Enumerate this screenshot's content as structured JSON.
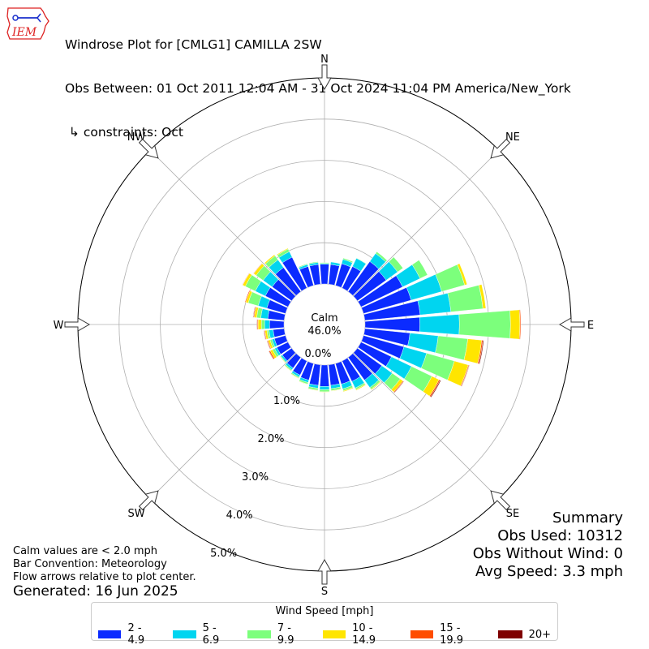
{
  "header": {
    "logo_text": "IEM",
    "title_line1": "Windrose Plot for [CMLG1] CAMILLA 2SW",
    "title_line2": "Obs Between: 01 Oct 2011 12:04 AM - 31 Oct 2024 11:04 PM America/New_York",
    "title_line3": " ↳ constraints: Oct"
  },
  "notes": {
    "calm_note": "Calm values are < 2.0 mph",
    "bar_convention": "Bar Convention: Meteorology",
    "flow_arrows": "Flow arrows relative to plot center.",
    "generated": "Generated: 16 Jun 2025"
  },
  "summary": {
    "title": "Summary",
    "obs_used": "Obs Used: 10312",
    "obs_without_wind": "Obs Without Wind: 0",
    "avg_speed": "Avg Speed: 3.3 mph"
  },
  "calm": {
    "label": "Calm",
    "value": "46.0%"
  },
  "legend": {
    "title": "Wind Speed [mph]"
  },
  "chart_data": {
    "type": "windrose",
    "units": "percent of observations",
    "calm_percent": 46.0,
    "direction_labels": [
      {
        "label": "N",
        "angle": 0
      },
      {
        "label": "NE",
        "angle": 45
      },
      {
        "label": "E",
        "angle": 90
      },
      {
        "label": "SE",
        "angle": 135
      },
      {
        "label": "S",
        "angle": 180
      },
      {
        "label": "SW",
        "angle": 225
      },
      {
        "label": "W",
        "angle": 270
      },
      {
        "label": "NW",
        "angle": 315
      }
    ],
    "radial_ticks": [
      "0.0%",
      "1.0%",
      "2.0%",
      "3.0%",
      "4.0%",
      "5.0%"
    ],
    "rmax_percent": 5.0,
    "bins": [
      {
        "label": "2 - 4.9",
        "color": "#0b2bff"
      },
      {
        "label": "5 - 6.9",
        "color": "#00d5f0"
      },
      {
        "label": "7 - 9.9",
        "color": "#7cff7c"
      },
      {
        "label": "10 - 14.9",
        "color": "#ffe500"
      },
      {
        "label": "15 - 19.9",
        "color": "#ff4d00"
      },
      {
        "label": "20+",
        "color": "#7f0000"
      }
    ],
    "sectors": [
      {
        "dir": 0,
        "values": [
          0.48,
          0.02,
          0.02,
          0.0,
          0.0,
          0.0
        ]
      },
      {
        "dir": 10,
        "values": [
          0.48,
          0.06,
          0.0,
          0.0,
          0.0,
          0.0
        ]
      },
      {
        "dir": 20,
        "values": [
          0.55,
          0.11,
          0.03,
          0.0,
          0.0,
          0.0
        ]
      },
      {
        "dir": 30,
        "values": [
          0.58,
          0.22,
          0.01,
          0.0,
          0.0,
          0.0
        ]
      },
      {
        "dir": 40,
        "values": [
          0.9,
          0.24,
          0.05,
          0.0,
          0.0,
          0.0
        ]
      },
      {
        "dir": 50,
        "values": [
          0.86,
          0.34,
          0.16,
          0.0,
          0.0,
          0.0
        ]
      },
      {
        "dir": 60,
        "values": [
          1.12,
          0.47,
          0.2,
          0.0,
          0.0,
          0.0
        ]
      },
      {
        "dir": 70,
        "values": [
          1.2,
          0.77,
          0.58,
          0.06,
          0.0,
          0.0
        ]
      },
      {
        "dir": 80,
        "values": [
          1.35,
          0.75,
          0.78,
          0.07,
          0.0,
          0.0
        ]
      },
      {
        "dir": 90,
        "values": [
          1.33,
          0.96,
          1.24,
          0.23,
          0.02,
          0.0
        ]
      },
      {
        "dir": 100,
        "values": [
          1.1,
          0.69,
          0.72,
          0.34,
          0.03,
          0.02
        ]
      },
      {
        "dir": 110,
        "values": [
          1.02,
          0.57,
          0.7,
          0.35,
          0.02,
          0.01
        ]
      },
      {
        "dir": 120,
        "values": [
          0.82,
          0.54,
          0.55,
          0.19,
          0.03,
          0.02
        ]
      },
      {
        "dir": 130,
        "values": [
          0.73,
          0.31,
          0.24,
          0.08,
          0.02,
          0.01
        ]
      },
      {
        "dir": 140,
        "values": [
          0.68,
          0.22,
          0.05,
          0.02,
          0.0,
          0.0
        ]
      },
      {
        "dir": 150,
        "values": [
          0.55,
          0.18,
          0.04,
          0.02,
          0.0,
          0.0
        ]
      },
      {
        "dir": 160,
        "values": [
          0.52,
          0.12,
          0.05,
          0.02,
          0.0,
          0.0
        ]
      },
      {
        "dir": 170,
        "values": [
          0.5,
          0.08,
          0.05,
          0.01,
          0.0,
          0.0
        ]
      },
      {
        "dir": 180,
        "values": [
          0.52,
          0.08,
          0.05,
          0.01,
          0.0,
          0.0
        ]
      },
      {
        "dir": 190,
        "values": [
          0.5,
          0.07,
          0.05,
          0.01,
          0.0,
          0.0
        ]
      },
      {
        "dir": 200,
        "values": [
          0.42,
          0.06,
          0.04,
          0.01,
          0.0,
          0.0
        ]
      },
      {
        "dir": 210,
        "values": [
          0.38,
          0.05,
          0.03,
          0.01,
          0.0,
          0.0
        ]
      },
      {
        "dir": 220,
        "values": [
          0.32,
          0.05,
          0.03,
          0.01,
          0.0,
          0.0
        ]
      },
      {
        "dir": 230,
        "values": [
          0.28,
          0.04,
          0.02,
          0.01,
          0.0,
          0.0
        ]
      },
      {
        "dir": 240,
        "values": [
          0.3,
          0.06,
          0.06,
          0.06,
          0.03,
          0.01
        ]
      },
      {
        "dir": 250,
        "values": [
          0.28,
          0.06,
          0.05,
          0.05,
          0.02,
          0.01
        ]
      },
      {
        "dir": 260,
        "values": [
          0.27,
          0.1,
          0.05,
          0.05,
          0.02,
          0.01
        ]
      },
      {
        "dir": 270,
        "values": [
          0.35,
          0.12,
          0.08,
          0.08,
          0.02,
          0.01
        ]
      },
      {
        "dir": 280,
        "values": [
          0.4,
          0.17,
          0.1,
          0.06,
          0.02,
          0.01
        ]
      },
      {
        "dir": 290,
        "values": [
          0.47,
          0.22,
          0.25,
          0.06,
          0.02,
          0.0
        ]
      },
      {
        "dir": 300,
        "values": [
          0.61,
          0.27,
          0.27,
          0.07,
          0.01,
          0.0
        ]
      },
      {
        "dir": 310,
        "values": [
          0.58,
          0.27,
          0.21,
          0.07,
          0.01,
          0.0
        ]
      },
      {
        "dir": 320,
        "values": [
          0.72,
          0.23,
          0.12,
          0.03,
          0.0,
          0.0
        ]
      },
      {
        "dir": 330,
        "values": [
          0.83,
          0.15,
          0.07,
          0.02,
          0.0,
          0.0
        ]
      },
      {
        "dir": 340,
        "values": [
          0.48,
          0.05,
          0.02,
          0.0,
          0.0,
          0.0
        ]
      },
      {
        "dir": 350,
        "values": [
          0.48,
          0.05,
          0.02,
          0.0,
          0.0,
          0.0
        ]
      }
    ]
  }
}
